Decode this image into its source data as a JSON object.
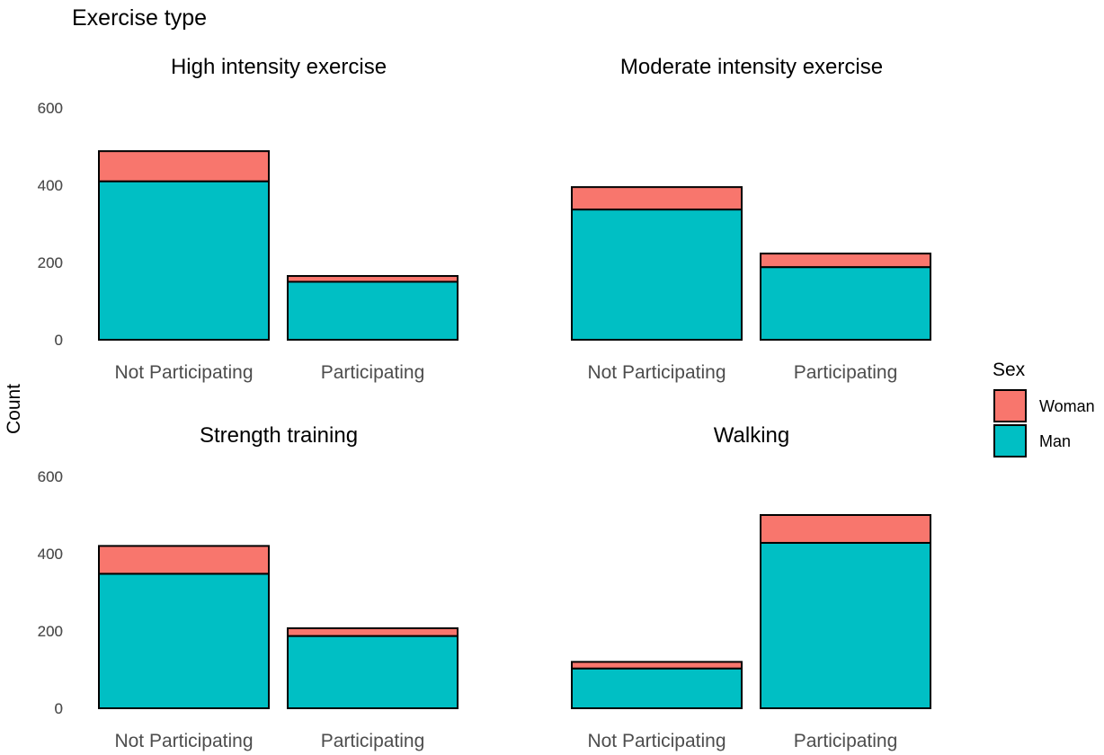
{
  "title": "Exercise type",
  "ylabel": "Count",
  "legend": {
    "title": "Sex",
    "entries": [
      {
        "label": "Woman",
        "color": "#F8766D"
      },
      {
        "label": "Man",
        "color": "#00BFC4"
      }
    ]
  },
  "chart_data": {
    "type": "bar",
    "stacked": true,
    "ylim": [
      0,
      600
    ],
    "yticks": [
      0,
      200,
      400,
      600
    ],
    "categories": [
      "Not Participating",
      "Participating"
    ],
    "panels": [
      {
        "title": "High intensity exercise",
        "series": [
          {
            "name": "Man",
            "values": [
              410,
              150
            ]
          },
          {
            "name": "Woman",
            "values": [
              78,
              15
            ]
          }
        ]
      },
      {
        "title": "Moderate intensity exercise",
        "series": [
          {
            "name": "Man",
            "values": [
              337,
              188
            ]
          },
          {
            "name": "Woman",
            "values": [
              58,
              35
            ]
          }
        ]
      },
      {
        "title": "Strength training",
        "series": [
          {
            "name": "Man",
            "values": [
              348,
              187
            ]
          },
          {
            "name": "Woman",
            "values": [
              72,
              20
            ]
          }
        ]
      },
      {
        "title": "Walking",
        "series": [
          {
            "name": "Man",
            "values": [
              103,
              428
            ]
          },
          {
            "name": "Woman",
            "values": [
              17,
              72
            ]
          }
        ]
      }
    ],
    "grid": false,
    "legend_position": "right"
  }
}
